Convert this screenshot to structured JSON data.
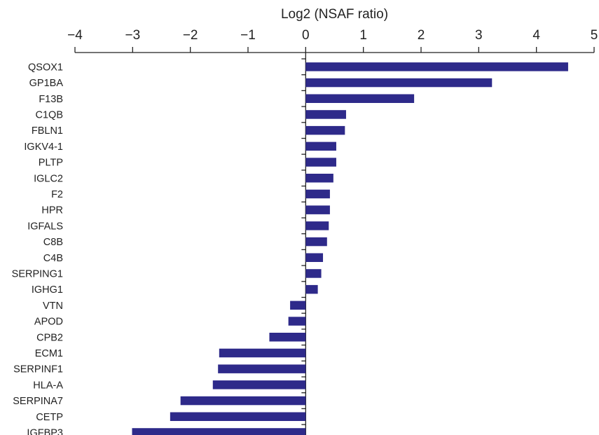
{
  "chart_data": {
    "type": "bar",
    "orientation": "horizontal",
    "title": "",
    "xlabel": "Log2 (NSAF ratio)",
    "ylabel": "",
    "xlim": [
      -4,
      5
    ],
    "xticks": [
      -4,
      -3,
      -2,
      -1,
      0,
      1,
      2,
      3,
      4,
      5
    ],
    "xtick_labels": [
      "−4",
      "−3",
      "−2",
      "−1",
      "0",
      "1",
      "2",
      "3",
      "4",
      "5"
    ],
    "x_axis_position": "top",
    "grid": false,
    "legend": "none",
    "bar_color": "#2e2a8a",
    "categories": [
      "QSOX1",
      "GP1BA",
      "F13B",
      "C1QB",
      "FBLN1",
      "IGKV4-1",
      "PLTP",
      "IGLC2",
      "F2",
      "HPR",
      "IGFALS",
      "C8B",
      "C4B",
      "SERPING1",
      "IGHG1",
      "VTN",
      "APOD",
      "CPB2",
      "ECM1",
      "SERPINF1",
      "HLA-A",
      "SERPINA7",
      "CETP",
      "IGFBP3"
    ],
    "values": [
      4.55,
      3.23,
      1.88,
      0.7,
      0.68,
      0.53,
      0.53,
      0.48,
      0.42,
      0.42,
      0.4,
      0.37,
      0.3,
      0.27,
      0.21,
      -0.27,
      -0.3,
      -0.63,
      -1.5,
      -1.52,
      -1.61,
      -2.17,
      -2.35,
      -3.01
    ]
  }
}
